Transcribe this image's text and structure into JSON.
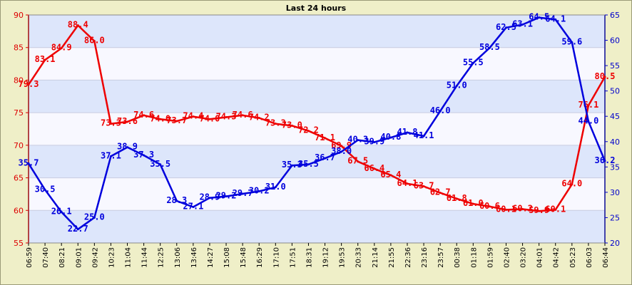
{
  "chart_data": {
    "type": "line",
    "title": "Last 24 hours",
    "xlabel": "",
    "ylabel": "",
    "grid": true,
    "categories": [
      "06:59",
      "07:40",
      "08:21",
      "09:01",
      "09:42",
      "10:23",
      "11:04",
      "11:44",
      "12:25",
      "13:06",
      "13:46",
      "14:27",
      "15:08",
      "15:48",
      "16:29",
      "17:10",
      "17:51",
      "18:31",
      "19:12",
      "19:53",
      "20:33",
      "21:14",
      "21:55",
      "22:36",
      "23:16",
      "23:57",
      "00:38",
      "01:18",
      "01:59",
      "02:40",
      "03:20",
      "04:01",
      "04:42",
      "05:23",
      "06:03",
      "06:44"
    ],
    "y_left": {
      "min": 55,
      "max": 90,
      "ticks": [
        55,
        60,
        65,
        70,
        75,
        80,
        85,
        90
      ],
      "color": "#dd0000"
    },
    "y_right": {
      "min": 20,
      "max": 65,
      "ticks": [
        20,
        25,
        30,
        35,
        40,
        45,
        50,
        55,
        60,
        65
      ],
      "color": "#0000cc"
    },
    "series": [
      {
        "axis": "left",
        "color": "#ee0000",
        "values": [
          79.3,
          83.1,
          84.9,
          88.4,
          86.0,
          73.3,
          73.6,
          74.6,
          74.0,
          73.7,
          74.4,
          74.0,
          74.3,
          74.6,
          74.2,
          73.3,
          73.0,
          72.2,
          71.1,
          69.9,
          67.5,
          66.4,
          65.4,
          64.1,
          63.7,
          62.7,
          61.8,
          61.0,
          60.6,
          60.1,
          60.2,
          59.9,
          60.1,
          64.0,
          76.1,
          80.5
        ],
        "labels": [
          "79.3",
          "83.1",
          "84.9",
          "88.4",
          "86.0",
          "73.3",
          "73.6",
          "74.6",
          "74.0",
          "73.7",
          "74.4",
          "74.0",
          "74.3",
          "74.6",
          "74.2",
          "73.3",
          "73.0",
          "72.2",
          "71.1",
          "69.9",
          "67.5",
          "66.4",
          "65.4",
          "64.1",
          "63.7",
          "62.7",
          "61.8",
          "61.0",
          "60.6",
          "60.1",
          "60.2",
          "59.9",
          "60.1",
          "64.0",
          "76.1",
          "80.5"
        ]
      },
      {
        "axis": "right",
        "color": "#0000dd",
        "values": [
          35.7,
          30.5,
          26.1,
          22.7,
          25.0,
          37.1,
          38.9,
          37.3,
          35.5,
          28.3,
          27.1,
          28.9,
          29.2,
          29.7,
          30.2,
          31.0,
          35.3,
          35.5,
          36.7,
          38.0,
          40.3,
          39.9,
          40.8,
          41.8,
          41.1,
          46.0,
          51.0,
          55.5,
          58.5,
          62.5,
          63.1,
          64.5,
          64.1,
          59.6,
          44.0,
          36.2
        ],
        "labels": [
          "35.7",
          "30.5",
          "26.1",
          "22.7",
          "25.0",
          "37.1",
          "38.9",
          "37.3",
          "35.5",
          "28.3",
          "27.1",
          "28.9",
          "29.2",
          "29.7",
          "30.2",
          "31.0",
          "35.3",
          "35.5",
          "36.7",
          "38.0",
          "40.3",
          "39.9",
          "40.8",
          "41.8",
          "41.1",
          "46.0",
          "51.0",
          "55.5",
          "58.5",
          "62.5",
          "63.1",
          "64.5",
          "64.1",
          "59.6",
          "44.0",
          "36.2"
        ]
      }
    ]
  }
}
